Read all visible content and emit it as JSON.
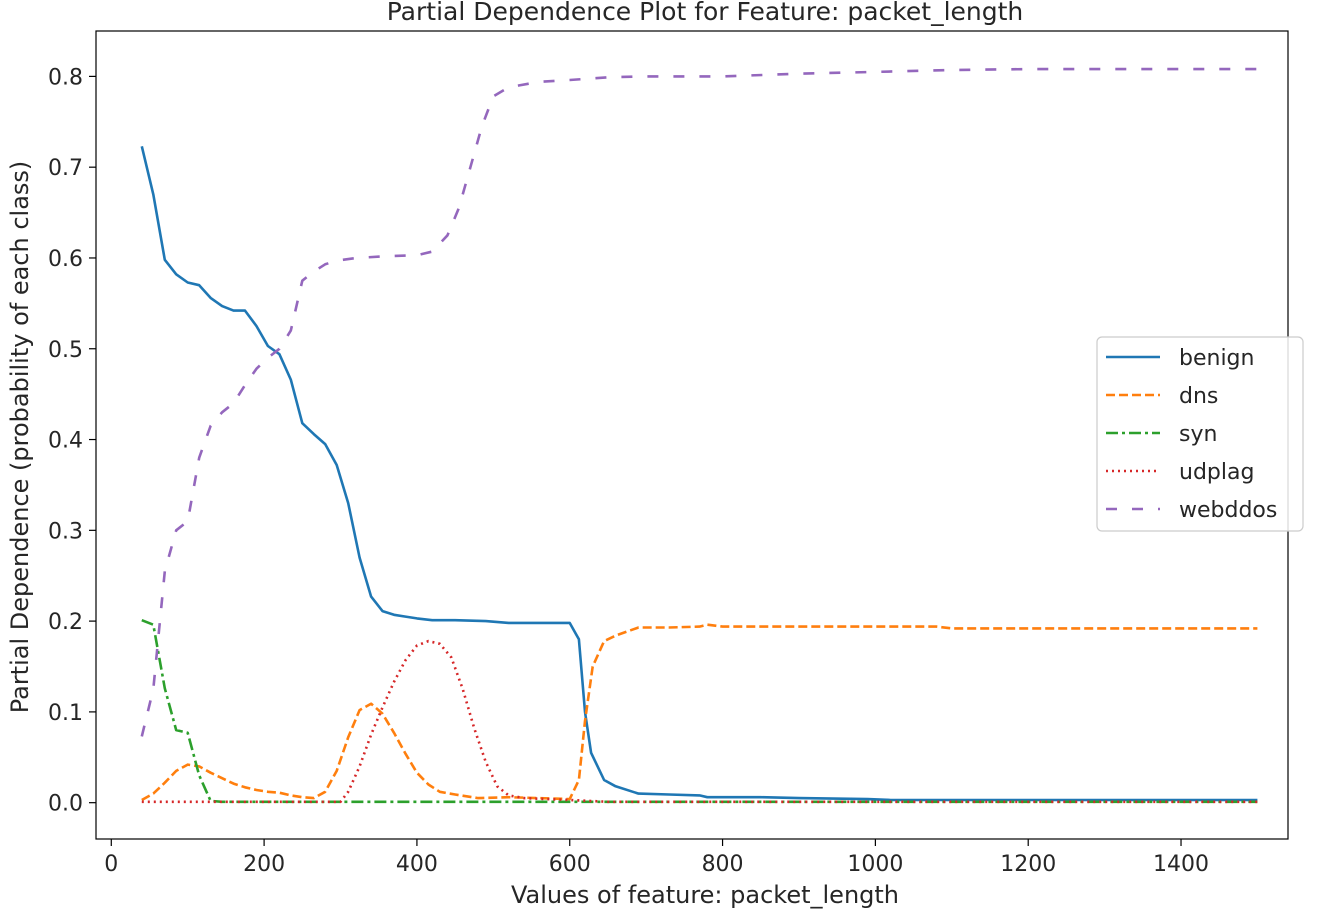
{
  "chart_data": {
    "type": "line",
    "title": "Partial Dependence Plot for Feature: packet_length",
    "xlabel": "Values of feature: packet_length",
    "ylabel": "Partial Dependence (probability of each class)",
    "xlim": [
      -20,
      1540
    ],
    "ylim": [
      -0.04,
      0.85
    ],
    "x_ticks": [
      0,
      200,
      400,
      600,
      800,
      1000,
      1200,
      1400
    ],
    "y_ticks": [
      0.0,
      0.1,
      0.2,
      0.3,
      0.4,
      0.5,
      0.6,
      0.7,
      0.8
    ],
    "legend_position": "center-right",
    "grid": false,
    "series": [
      {
        "name": "benign",
        "color": "#1f77b4",
        "dash": "solid",
        "points": [
          [
            40,
            0.723
          ],
          [
            55,
            0.67
          ],
          [
            70,
            0.598
          ],
          [
            85,
            0.582
          ],
          [
            100,
            0.573
          ],
          [
            115,
            0.57
          ],
          [
            130,
            0.556
          ],
          [
            145,
            0.547
          ],
          [
            160,
            0.542
          ],
          [
            175,
            0.542
          ],
          [
            190,
            0.525
          ],
          [
            205,
            0.503
          ],
          [
            220,
            0.494
          ],
          [
            235,
            0.466
          ],
          [
            250,
            0.418
          ],
          [
            265,
            0.406
          ],
          [
            280,
            0.395
          ],
          [
            295,
            0.372
          ],
          [
            310,
            0.33
          ],
          [
            325,
            0.27
          ],
          [
            340,
            0.227
          ],
          [
            355,
            0.211
          ],
          [
            370,
            0.207
          ],
          [
            385,
            0.205
          ],
          [
            400,
            0.203
          ],
          [
            420,
            0.201
          ],
          [
            450,
            0.201
          ],
          [
            490,
            0.2
          ],
          [
            520,
            0.198
          ],
          [
            560,
            0.198
          ],
          [
            600,
            0.198
          ],
          [
            612,
            0.18
          ],
          [
            620,
            0.1
          ],
          [
            628,
            0.055
          ],
          [
            645,
            0.025
          ],
          [
            660,
            0.018
          ],
          [
            690,
            0.01
          ],
          [
            730,
            0.009
          ],
          [
            770,
            0.008
          ],
          [
            780,
            0.006
          ],
          [
            850,
            0.006
          ],
          [
            900,
            0.005
          ],
          [
            990,
            0.004
          ],
          [
            1020,
            0.003
          ],
          [
            1200,
            0.003
          ],
          [
            1500,
            0.003
          ]
        ]
      },
      {
        "name": "dns",
        "color": "#ff7f0e",
        "dash": "dashed",
        "points": [
          [
            40,
            0.003
          ],
          [
            55,
            0.01
          ],
          [
            70,
            0.022
          ],
          [
            85,
            0.035
          ],
          [
            100,
            0.042
          ],
          [
            115,
            0.04
          ],
          [
            130,
            0.033
          ],
          [
            145,
            0.027
          ],
          [
            160,
            0.021
          ],
          [
            175,
            0.017
          ],
          [
            190,
            0.014
          ],
          [
            205,
            0.012
          ],
          [
            220,
            0.011
          ],
          [
            235,
            0.008
          ],
          [
            250,
            0.006
          ],
          [
            265,
            0.005
          ],
          [
            280,
            0.012
          ],
          [
            295,
            0.035
          ],
          [
            310,
            0.072
          ],
          [
            325,
            0.102
          ],
          [
            340,
            0.109
          ],
          [
            355,
            0.098
          ],
          [
            370,
            0.077
          ],
          [
            385,
            0.054
          ],
          [
            400,
            0.033
          ],
          [
            415,
            0.02
          ],
          [
            430,
            0.012
          ],
          [
            450,
            0.009
          ],
          [
            480,
            0.005
          ],
          [
            520,
            0.006
          ],
          [
            560,
            0.005
          ],
          [
            600,
            0.004
          ],
          [
            612,
            0.025
          ],
          [
            620,
            0.09
          ],
          [
            630,
            0.15
          ],
          [
            645,
            0.178
          ],
          [
            660,
            0.184
          ],
          [
            690,
            0.193
          ],
          [
            730,
            0.193
          ],
          [
            770,
            0.194
          ],
          [
            780,
            0.196
          ],
          [
            800,
            0.194
          ],
          [
            900,
            0.194
          ],
          [
            1000,
            0.194
          ],
          [
            1080,
            0.194
          ],
          [
            1100,
            0.192
          ],
          [
            1200,
            0.192
          ],
          [
            1500,
            0.192
          ]
        ]
      },
      {
        "name": "syn",
        "color": "#2ca02c",
        "dash": "dashdot",
        "points": [
          [
            40,
            0.201
          ],
          [
            55,
            0.196
          ],
          [
            70,
            0.126
          ],
          [
            85,
            0.08
          ],
          [
            100,
            0.077
          ],
          [
            115,
            0.03
          ],
          [
            130,
            0.002
          ],
          [
            145,
            0.001
          ],
          [
            200,
            0.001
          ],
          [
            300,
            0.001
          ],
          [
            400,
            0.001
          ],
          [
            500,
            0.001
          ],
          [
            600,
            0.001
          ],
          [
            700,
            0.001
          ],
          [
            800,
            0.001
          ],
          [
            1000,
            0.001
          ],
          [
            1200,
            0.001
          ],
          [
            1500,
            0.001
          ]
        ]
      },
      {
        "name": "udplag",
        "color": "#d62728",
        "dash": "dotted",
        "points": [
          [
            40,
            0.001
          ],
          [
            150,
            0.001
          ],
          [
            250,
            0.001
          ],
          [
            300,
            0.001
          ],
          [
            310,
            0.012
          ],
          [
            325,
            0.04
          ],
          [
            340,
            0.075
          ],
          [
            355,
            0.105
          ],
          [
            370,
            0.133
          ],
          [
            385,
            0.157
          ],
          [
            400,
            0.173
          ],
          [
            415,
            0.178
          ],
          [
            430,
            0.175
          ],
          [
            445,
            0.16
          ],
          [
            460,
            0.125
          ],
          [
            475,
            0.082
          ],
          [
            490,
            0.045
          ],
          [
            505,
            0.018
          ],
          [
            520,
            0.008
          ],
          [
            540,
            0.005
          ],
          [
            600,
            0.003
          ],
          [
            650,
            0.001
          ],
          [
            800,
            0.001
          ],
          [
            1000,
            0.001
          ],
          [
            1200,
            0.001
          ],
          [
            1500,
            0.001
          ]
        ]
      },
      {
        "name": "webddos",
        "color": "#9467bd",
        "dash": "loosedash",
        "points": [
          [
            40,
            0.073
          ],
          [
            55,
            0.125
          ],
          [
            70,
            0.255
          ],
          [
            85,
            0.3
          ],
          [
            100,
            0.31
          ],
          [
            115,
            0.38
          ],
          [
            130,
            0.415
          ],
          [
            145,
            0.43
          ],
          [
            160,
            0.44
          ],
          [
            175,
            0.46
          ],
          [
            190,
            0.478
          ],
          [
            205,
            0.49
          ],
          [
            220,
            0.5
          ],
          [
            235,
            0.52
          ],
          [
            250,
            0.575
          ],
          [
            265,
            0.585
          ],
          [
            280,
            0.593
          ],
          [
            295,
            0.597
          ],
          [
            320,
            0.6
          ],
          [
            360,
            0.602
          ],
          [
            400,
            0.603
          ],
          [
            420,
            0.607
          ],
          [
            440,
            0.625
          ],
          [
            455,
            0.655
          ],
          [
            470,
            0.7
          ],
          [
            485,
            0.745
          ],
          [
            500,
            0.778
          ],
          [
            520,
            0.788
          ],
          [
            560,
            0.794
          ],
          [
            600,
            0.796
          ],
          [
            650,
            0.799
          ],
          [
            700,
            0.8
          ],
          [
            800,
            0.8
          ],
          [
            900,
            0.803
          ],
          [
            1000,
            0.805
          ],
          [
            1100,
            0.807
          ],
          [
            1200,
            0.808
          ],
          [
            1500,
            0.808
          ]
        ]
      }
    ]
  }
}
